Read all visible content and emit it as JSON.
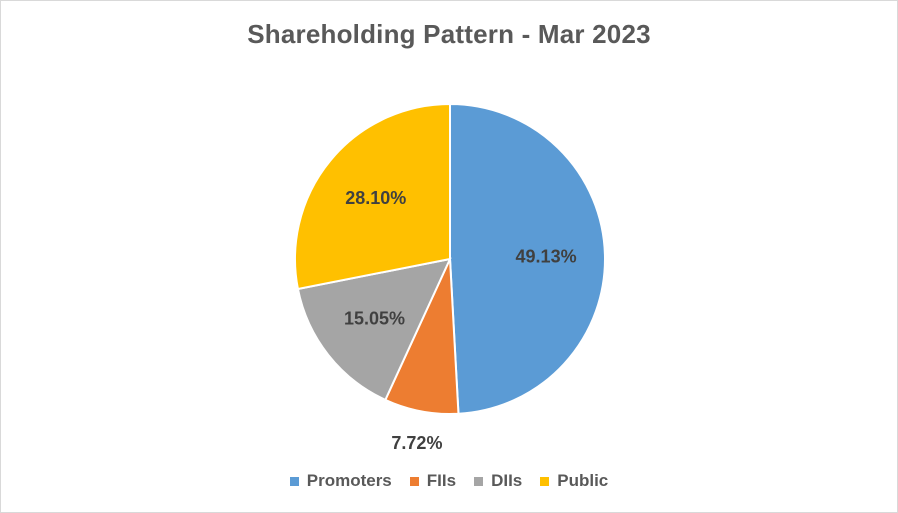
{
  "chart_data": {
    "type": "pie",
    "title": "Shareholding Pattern - Mar 2023",
    "categories": [
      "Promoters",
      "FIIs",
      "DIIs",
      "Public"
    ],
    "values": [
      49.13,
      7.72,
      15.05,
      28.1
    ],
    "labels": [
      "49.13%",
      "7.72%",
      "15.05%",
      "28.10%"
    ],
    "colors": [
      "#5b9bd5",
      "#ed7d31",
      "#a5a5a5",
      "#ffc000"
    ],
    "start_angle_deg": 0,
    "direction": "clockwise",
    "legend_position": "bottom"
  }
}
